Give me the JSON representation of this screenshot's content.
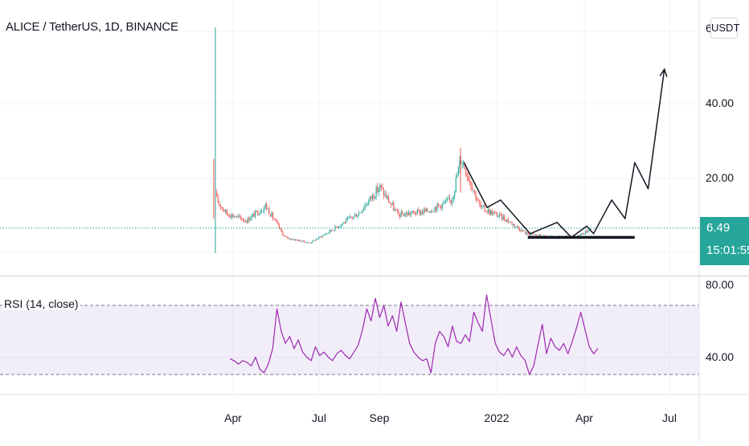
{
  "chart_data": [
    {
      "type": "candlestick",
      "title": "ALICE / TetherUS, 1D, BINANCE",
      "y_axis_labels": [
        "6",
        "40.00",
        "20.00"
      ],
      "currency_button": "USDT",
      "last_price": "6.49",
      "countdown": "15:01:55",
      "x_tick_labels": [
        "Apr",
        "Jul",
        "Sep",
        "2022",
        "Apr",
        "Jul"
      ],
      "ohlc_summary": [
        {
          "date": "2021-03-15",
          "close": 14.0
        },
        {
          "date": "2021-03-25",
          "close": 10.5
        },
        {
          "date": "2021-04-15",
          "close": 8.5
        },
        {
          "date": "2021-05-05",
          "close": 12.5
        },
        {
          "date": "2021-05-25",
          "close": 4.0
        },
        {
          "date": "2021-06-20",
          "close": 2.5
        },
        {
          "date": "2021-07-10",
          "close": 5.5
        },
        {
          "date": "2021-08-10",
          "close": 10.5
        },
        {
          "date": "2021-09-01",
          "close": 17.5
        },
        {
          "date": "2021-09-20",
          "close": 10.0
        },
        {
          "date": "2021-10-20",
          "close": 11.0
        },
        {
          "date": "2021-11-15",
          "close": 14.0
        },
        {
          "date": "2021-11-25",
          "close": 25.5
        },
        {
          "date": "2021-12-15",
          "close": 12.0
        },
        {
          "date": "2022-01-10",
          "close": 9.0
        },
        {
          "date": "2022-02-01",
          "close": 5.0
        },
        {
          "date": "2022-02-25",
          "close": 4.0
        },
        {
          "date": "2022-03-25",
          "close": 4.0
        },
        {
          "date": "2022-04-10",
          "close": 6.5
        }
      ],
      "projection_path": [
        {
          "date": "2021-11-28",
          "value": 24
        },
        {
          "date": "2021-12-22",
          "value": 12
        },
        {
          "date": "2022-01-05",
          "value": 14
        },
        {
          "date": "2022-02-05",
          "value": 5
        },
        {
          "date": "2022-03-05",
          "value": 8
        },
        {
          "date": "2022-03-20",
          "value": 4
        },
        {
          "date": "2022-04-05",
          "value": 7
        },
        {
          "date": "2022-04-12",
          "value": 5
        },
        {
          "date": "2022-05-01",
          "value": 14
        },
        {
          "date": "2022-05-15",
          "value": 9
        },
        {
          "date": "2022-05-25",
          "value": 24
        },
        {
          "date": "2022-06-08",
          "value": 17
        },
        {
          "date": "2022-06-25",
          "value": 49
        }
      ],
      "support_line": {
        "from": "2022-02-05",
        "to": "2022-05-15",
        "value": 4
      }
    },
    {
      "type": "line",
      "title": "RSI (14, close)",
      "y_axis_labels": [
        "80.00",
        "40.00"
      ],
      "bands": [
        70,
        30
      ],
      "values": [
        39,
        38,
        36,
        38,
        37,
        35,
        40,
        33,
        31,
        36,
        45,
        68,
        55,
        48,
        52,
        45,
        50,
        43,
        40,
        38,
        46,
        41,
        43,
        40,
        38,
        42,
        44,
        41,
        39,
        43,
        47,
        56,
        68,
        61,
        74,
        63,
        70,
        58,
        64,
        55,
        72,
        60,
        48,
        43,
        40,
        38,
        39,
        31,
        48,
        55,
        52,
        46,
        58,
        49,
        48,
        53,
        49,
        66,
        60,
        55,
        76,
        62,
        48,
        43,
        41,
        45,
        40,
        46,
        41,
        38,
        30,
        35,
        47,
        59,
        42,
        51,
        46,
        44,
        48,
        42,
        49,
        57,
        66,
        56,
        46,
        42,
        45
      ]
    }
  ]
}
